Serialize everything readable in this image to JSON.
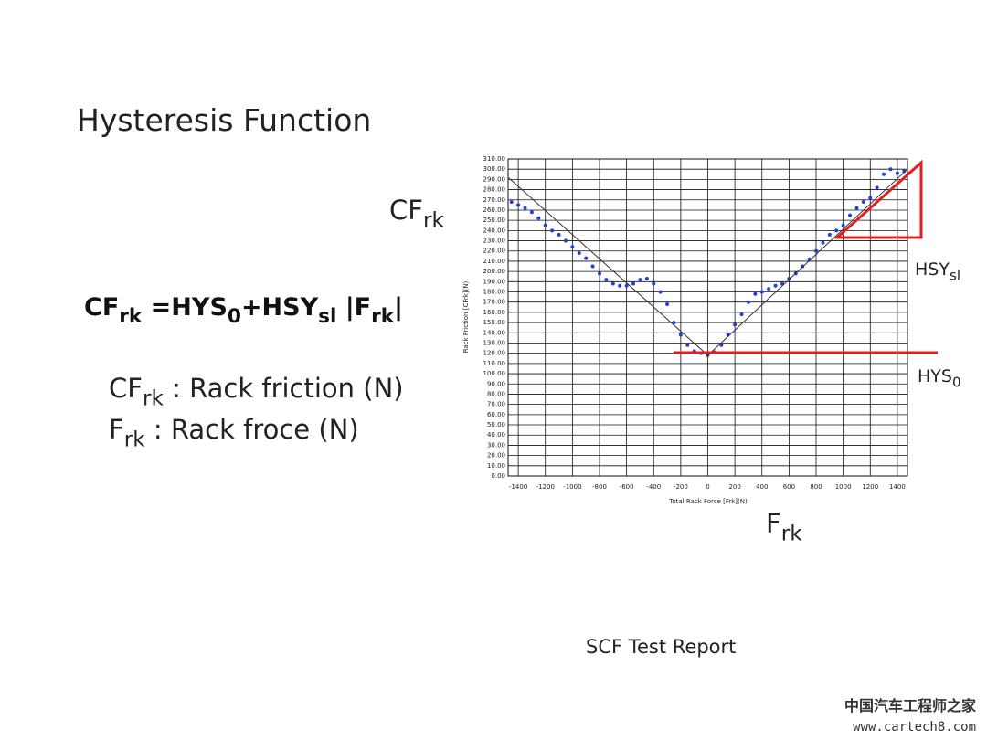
{
  "slide": {
    "title": "Hysteresis Function",
    "formula": [
      "CF",
      "rk",
      " =HYS",
      "0",
      "+HSY",
      "sl",
      " |F",
      "rk",
      "|"
    ],
    "definitions": [
      [
        "CF",
        "rk",
        " : Rack friction (N)"
      ],
      [
        "F",
        "rk",
        "   : Rack froce (N)"
      ]
    ],
    "caption": "SCF Test Report",
    "watermark": [
      "中国汽车工程师之家",
      "www.cartech8.com"
    ]
  },
  "chart_data": {
    "type": "scatter",
    "x_label": "Total Rack Force [Frk](N)",
    "y_label": "Rack Friction [CFrk](N)",
    "y_annotation": [
      "CF",
      "rk"
    ],
    "x_annotation": [
      "F",
      "rk"
    ],
    "annotations": [
      [
        "HSY",
        "sl"
      ],
      [
        "HYS",
        "0"
      ]
    ],
    "xlim": [
      -1475,
      1475
    ],
    "xticks": [
      -1400,
      -1200,
      -1000,
      -800,
      -600,
      -400,
      -200,
      0,
      200,
      400,
      600,
      800,
      1000,
      1200,
      1400
    ],
    "ylim": [
      0,
      310
    ],
    "yticks": [
      {
        "value": 0,
        "label": "0.00"
      },
      {
        "value": 10,
        "label": "10.00"
      },
      {
        "value": 20,
        "label": "20.00"
      },
      {
        "value": 30,
        "label": "30.00"
      },
      {
        "value": 40,
        "label": "40.00"
      },
      {
        "value": 50,
        "label": "50.00"
      },
      {
        "value": 60,
        "label": "60.00"
      },
      {
        "value": 70,
        "label": "70.00"
      },
      {
        "value": 80,
        "label": "80.00"
      },
      {
        "value": 90,
        "label": "90.00"
      },
      {
        "value": 100,
        "label": "100.00"
      },
      {
        "value": 110,
        "label": "110.00"
      },
      {
        "value": 120,
        "label": "120.00"
      },
      {
        "value": 130,
        "label": "130.00"
      },
      {
        "value": 140,
        "label": "140.00"
      },
      {
        "value": 150,
        "label": "150.00"
      },
      {
        "value": 160,
        "label": "160.00"
      },
      {
        "value": 170,
        "label": "170.00"
      },
      {
        "value": 180,
        "label": "180.00"
      },
      {
        "value": 190,
        "label": "190.00"
      },
      {
        "value": 200,
        "label": "200.00"
      },
      {
        "value": 210,
        "label": "210.00"
      },
      {
        "value": 220,
        "label": "220.00"
      },
      {
        "value": 230,
        "label": "230.00"
      },
      {
        "value": 240,
        "label": "240.00"
      },
      {
        "value": 250,
        "label": "250.00"
      },
      {
        "value": 260,
        "label": "260.00"
      },
      {
        "value": 270,
        "label": "270.00"
      },
      {
        "value": 280,
        "label": "280.00"
      },
      {
        "value": 290,
        "label": "290.00"
      },
      {
        "value": 300,
        "label": "300.00"
      },
      {
        "value": 310,
        "label": "310.00"
      }
    ],
    "grid": true,
    "series": [
      {
        "color": "#1f3fe0",
        "mark": "dot",
        "x": [
          -1450,
          -1400,
          -1350,
          -1300,
          -1250,
          -1200,
          -1150,
          -1100,
          -1050,
          -1000,
          -950,
          -900,
          -850,
          -800,
          -750,
          -700,
          -650,
          -600,
          -550,
          -500,
          -450,
          -400,
          -350,
          -300,
          -250,
          -200,
          -150,
          -100,
          -50,
          0,
          50,
          100,
          150,
          200,
          250,
          300,
          350,
          400,
          450,
          500,
          550,
          600,
          650,
          700,
          750,
          800,
          850,
          900,
          950,
          1000,
          1050,
          1100,
          1150,
          1200,
          1250,
          1300,
          1350,
          1400,
          1450
        ],
        "values": [
          268,
          265,
          262,
          258,
          252,
          245,
          240,
          236,
          230,
          224,
          218,
          213,
          205,
          198,
          192,
          188,
          186,
          186,
          188,
          192,
          193,
          188,
          180,
          168,
          150,
          138,
          128,
          122,
          120,
          118,
          121,
          128,
          138,
          148,
          158,
          170,
          178,
          180,
          183,
          186,
          188,
          193,
          198,
          205,
          212,
          220,
          228,
          236,
          240,
          245,
          255,
          262,
          268,
          272,
          282,
          295,
          300,
          296,
          298
        ]
      },
      {
        "color": "#333333",
        "mark": "line",
        "x": [
          -1475,
          0,
          1475
        ],
        "values": [
          292,
          118,
          300
        ]
      }
    ]
  }
}
